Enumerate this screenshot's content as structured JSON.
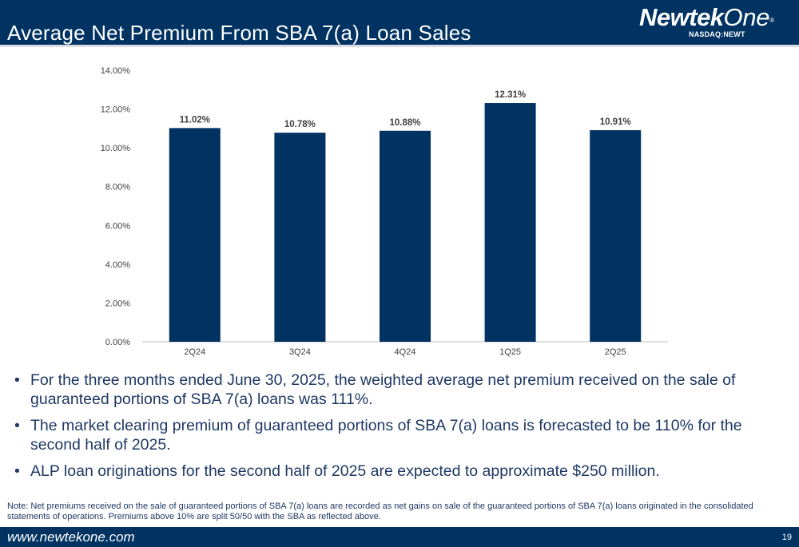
{
  "header": {
    "title": "Average Net Premium From SBA 7(a) Loan Sales"
  },
  "logo": {
    "name_bold": "Newtek",
    "name_light": "One",
    "registered": "®",
    "ticker": "NASDAQ:NEWT"
  },
  "chart_data": {
    "type": "bar",
    "title": "",
    "xlabel": "",
    "ylabel": "",
    "categories": [
      "2Q24",
      "3Q24",
      "4Q24",
      "1Q25",
      "2Q25"
    ],
    "values": [
      11.02,
      10.78,
      10.88,
      12.31,
      10.91
    ],
    "value_labels": [
      "11.02%",
      "10.78%",
      "10.88%",
      "12.31%",
      "10.91%"
    ],
    "ylim": [
      0,
      14
    ],
    "yticks": [
      0,
      2,
      4,
      6,
      8,
      10,
      12,
      14
    ],
    "ytick_labels": [
      "0.00%",
      "2.00%",
      "4.00%",
      "6.00%",
      "8.00%",
      "10.00%",
      "12.00%",
      "14.00%"
    ],
    "grid": false,
    "legend": "none",
    "bar_color": "#003262"
  },
  "bullets": [
    "For the three months ended June 30, 2025, the weighted average net premium received on the sale of guaranteed portions of SBA 7(a) loans was 111%.",
    "The market clearing premium of guaranteed portions of SBA 7(a) loans is forecasted to be 110% for the second half of 2025.",
    "ALP loan originations for the second half of 2025 are expected to approximate $250 million."
  ],
  "bullet_symbol": "•",
  "note": "Note: Net premiums received on the sale of guaranteed portions of SBA 7(a) loans are recorded as net gains on sale of the guaranteed portions of SBA 7(a) loans originated in the consolidated statements of operations. Premiums above 10% are split 50/50 with the SBA as reflected above.",
  "footer": {
    "url": "www.newtekone.com",
    "page_number": "19"
  },
  "colors": {
    "brand_navy": "#003262",
    "text_navy": "#1f3864"
  }
}
